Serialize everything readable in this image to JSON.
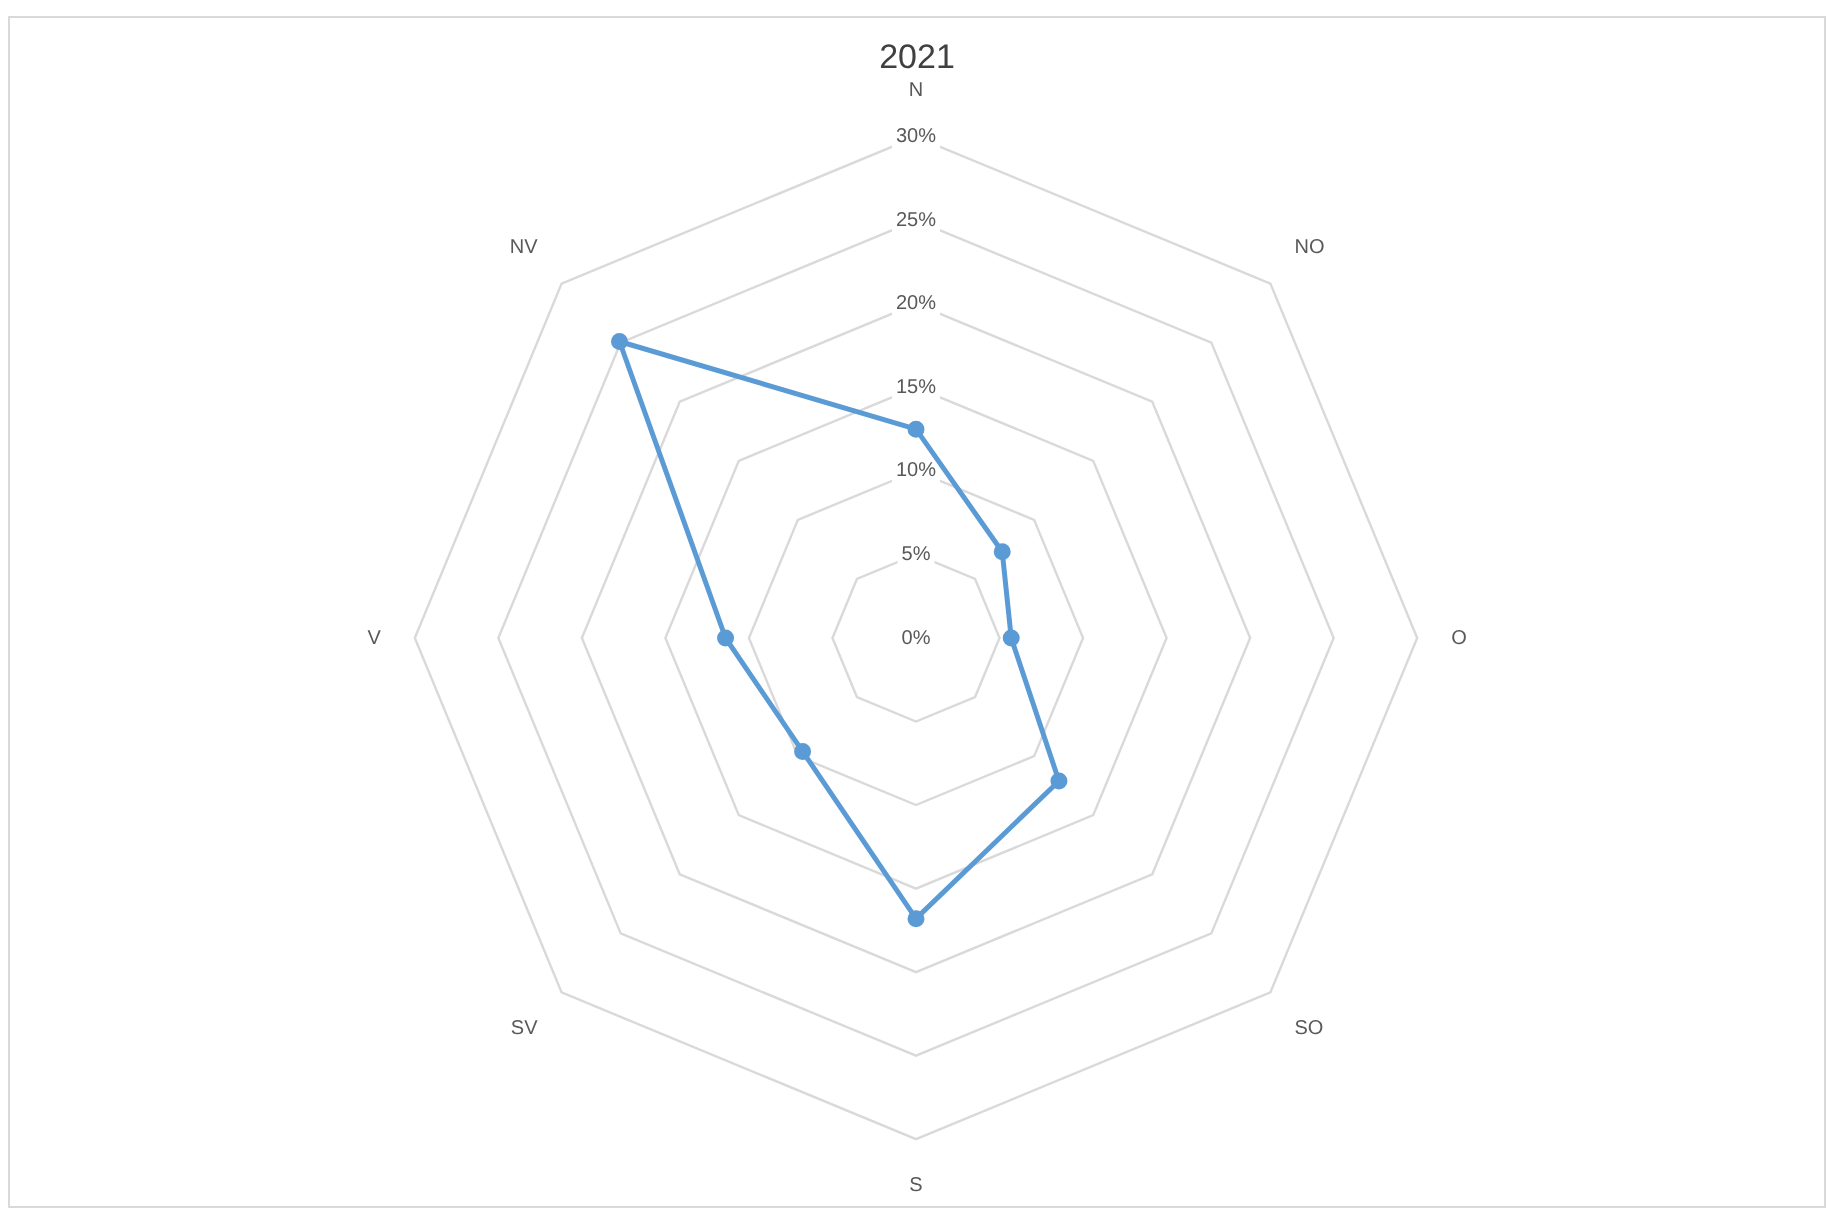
{
  "chart_data": {
    "type": "radar",
    "title": "2021",
    "categories": [
      "N",
      "NO",
      "O",
      "SO",
      "S",
      "SV",
      "V",
      "NV"
    ],
    "series": [
      {
        "color": "#5b9bd5",
        "values": [
          12.5,
          7.3,
          5.7,
          12.1,
          16.8,
          9.6,
          11.4,
          25.1
        ]
      }
    ],
    "ylim": [
      0,
      30
    ],
    "yticks": [
      {
        "value": 0,
        "label": "0%"
      },
      {
        "value": 5,
        "label": "5%"
      },
      {
        "value": 10,
        "label": "10%"
      },
      {
        "value": 15,
        "label": "15%"
      },
      {
        "value": 20,
        "label": "20%"
      },
      {
        "value": 25,
        "label": "25%"
      },
      {
        "value": 30,
        "label": "30%"
      }
    ],
    "grid": true,
    "marker": "circle",
    "line_style": "solid"
  }
}
